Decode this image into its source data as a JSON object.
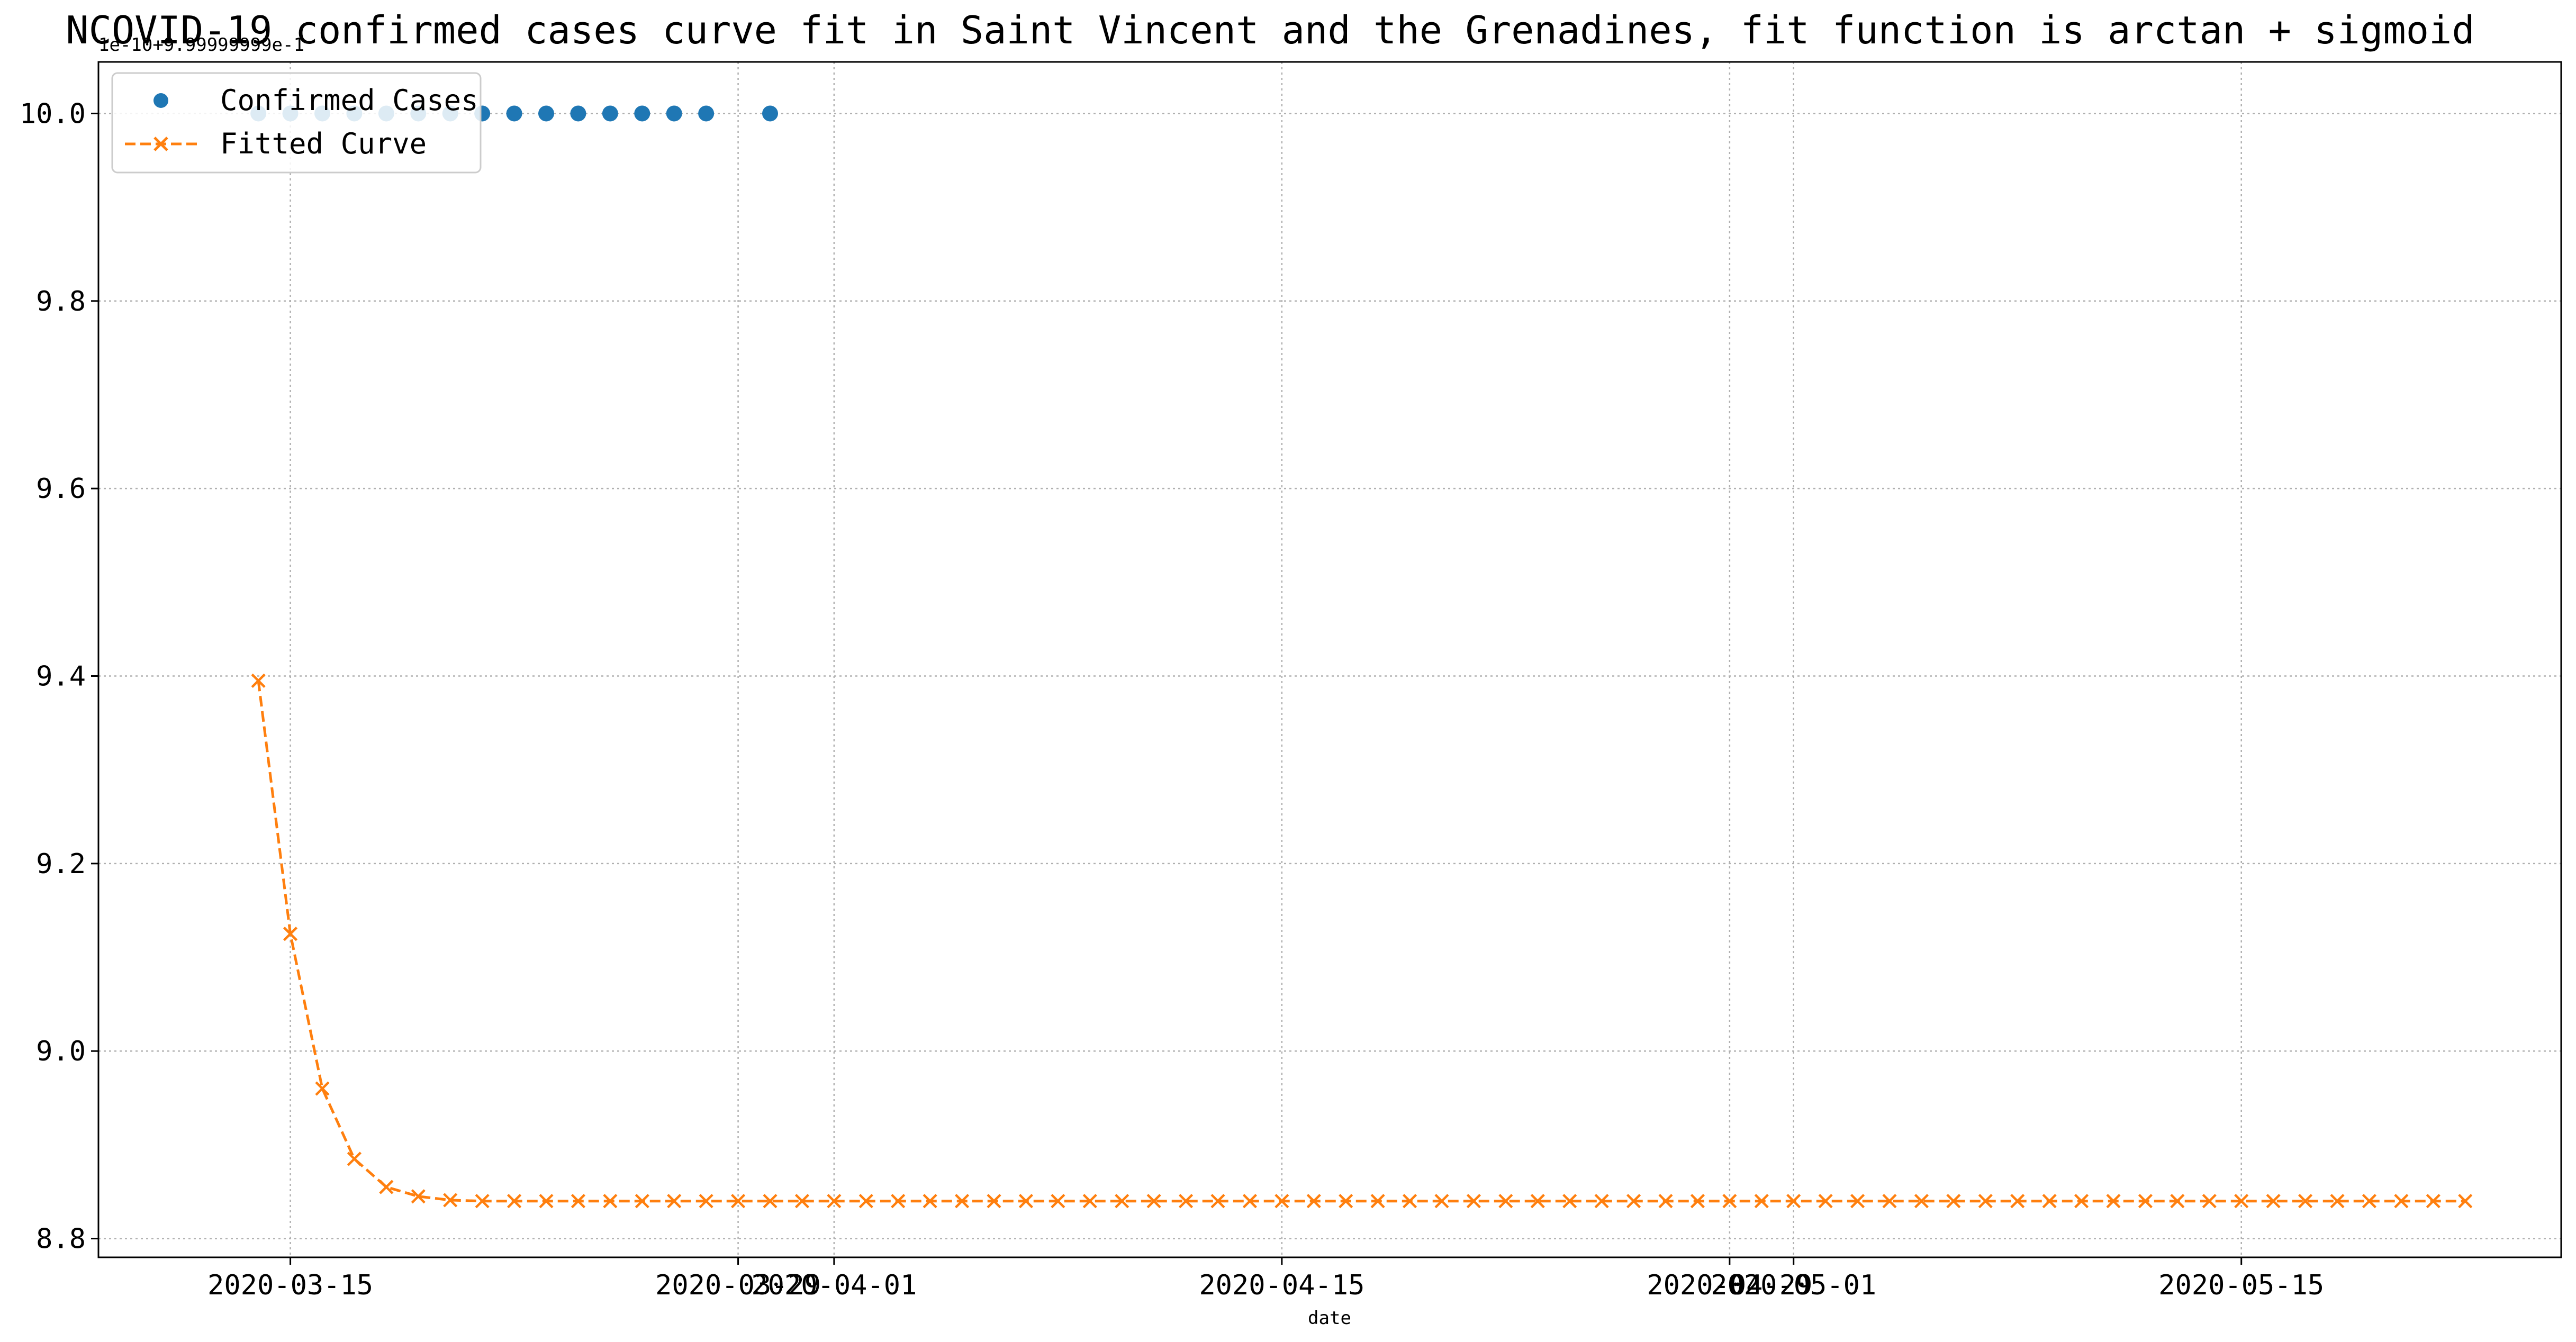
{
  "chart_data": {
    "type": "line",
    "title": "NCOVID-19 confirmed cases curve fit in Saint Vincent and the Grenadines, fit function is arctan + sigmoid",
    "xlabel": "date",
    "ylabel": "",
    "offset_text": "1e-10+9.99999999e-1",
    "x_range": [
      "2020-03-09",
      "2020-05-25"
    ],
    "y_range": [
      8.78,
      10.055
    ],
    "y_ticks": [
      8.8,
      9.0,
      9.2,
      9.4,
      9.6,
      9.8,
      10.0
    ],
    "y_tick_labels": [
      "8.8",
      "9.0",
      "9.2",
      "9.4",
      "9.6",
      "9.8",
      "10.0"
    ],
    "x_ticks": [
      {
        "date": "2020-03-15",
        "label": "2020-03-15"
      },
      {
        "date": "2020-03-29",
        "label": "2020-03-29"
      },
      {
        "date": "2020-04-01",
        "label": "2020-04-01"
      },
      {
        "date": "2020-04-15",
        "label": "2020-04-15"
      },
      {
        "date": "2020-04-29",
        "label": "2020-04-29"
      },
      {
        "date": "2020-05-01",
        "label": "2020-05-01"
      },
      {
        "date": "2020-05-15",
        "label": "2020-05-15"
      }
    ],
    "grid": true,
    "legend_position": "top-left",
    "series": [
      {
        "name": "Confirmed Cases",
        "style": "markers",
        "color": "#1f77b4",
        "x": [
          "2020-03-14",
          "2020-03-15",
          "2020-03-16",
          "2020-03-17",
          "2020-03-18",
          "2020-03-19",
          "2020-03-20",
          "2020-03-21",
          "2020-03-22",
          "2020-03-23",
          "2020-03-24",
          "2020-03-25",
          "2020-03-26",
          "2020-03-27",
          "2020-03-28",
          "2020-03-30"
        ],
        "y": [
          10.0,
          10.0,
          10.0,
          10.0,
          10.0,
          10.0,
          10.0,
          10.0,
          10.0,
          10.0,
          10.0,
          10.0,
          10.0,
          10.0,
          10.0,
          10.0
        ]
      },
      {
        "name": "Fitted Curve",
        "style": "dashed-x",
        "color": "#ff7f0e",
        "start_date": "2020-03-14",
        "y": [
          9.395,
          9.125,
          8.96,
          8.885,
          8.855,
          8.845,
          8.841,
          8.84,
          8.84,
          8.84,
          8.84,
          8.84,
          8.84,
          8.84,
          8.84,
          8.84,
          8.84,
          8.84,
          8.84,
          8.84,
          8.84,
          8.84,
          8.84,
          8.84,
          8.84,
          8.84,
          8.84,
          8.84,
          8.84,
          8.84,
          8.84,
          8.84,
          8.84,
          8.84,
          8.84,
          8.84,
          8.84,
          8.84,
          8.84,
          8.84,
          8.84,
          8.84,
          8.84,
          8.84,
          8.84,
          8.84,
          8.84,
          8.84,
          8.84,
          8.84,
          8.84,
          8.84,
          8.84,
          8.84,
          8.84,
          8.84,
          8.84,
          8.84,
          8.84,
          8.84,
          8.84,
          8.84,
          8.84,
          8.84,
          8.84,
          8.84,
          8.84,
          8.84,
          8.84,
          8.84
        ]
      }
    ]
  }
}
